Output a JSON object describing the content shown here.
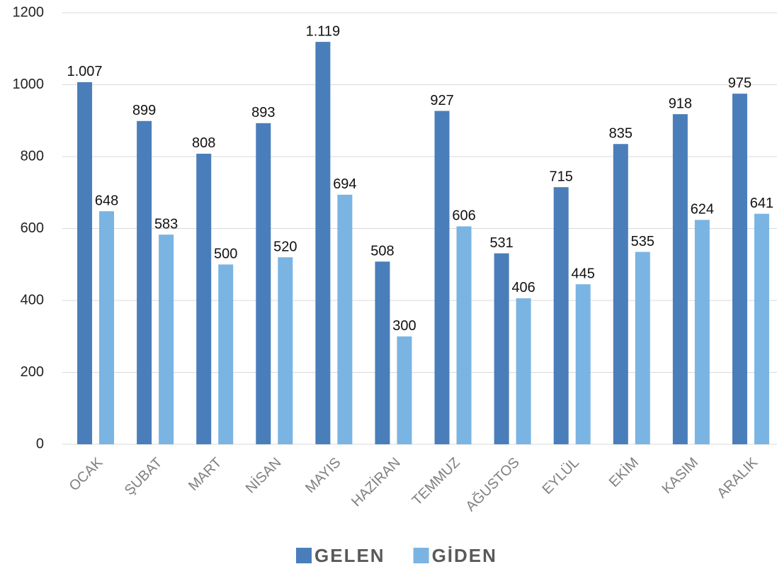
{
  "chart_data": {
    "type": "bar",
    "categories": [
      "OCAK",
      "ŞUBAT",
      "MART",
      "NİSAN",
      "MAYIS",
      "HAZİRAN",
      "TEMMUZ",
      "AĞUSTOS",
      "EYLÜL",
      "EKİM",
      "KASIM",
      "ARALIK"
    ],
    "series": [
      {
        "name": "GELEN",
        "color": "#4a7ebb",
        "values": [
          1007,
          899,
          808,
          893,
          1119,
          508,
          927,
          531,
          715,
          835,
          918,
          975
        ],
        "value_labels": [
          "1.007",
          "899",
          "808",
          "893",
          "1.119",
          "508",
          "927",
          "531",
          "715",
          "835",
          "918",
          "975"
        ]
      },
      {
        "name": "GİDEN",
        "color": "#7ab4e3",
        "values": [
          648,
          583,
          500,
          520,
          694,
          300,
          606,
          406,
          445,
          535,
          624,
          641
        ]
      }
    ],
    "ylim": [
      0,
      1200
    ],
    "yticks": [
      0,
      200,
      400,
      600,
      800,
      1000,
      1200
    ],
    "grid": true,
    "legend": "bottom"
  }
}
